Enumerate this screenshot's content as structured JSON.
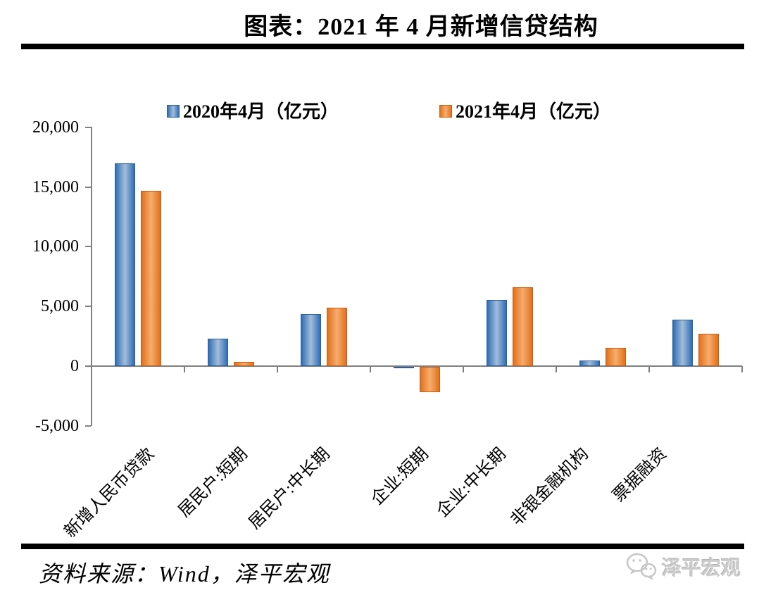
{
  "title": "图表：2021 年 4 月新增信贷结构",
  "legend": [
    {
      "label": "2020年4月（亿元）"
    },
    {
      "label": "2021年4月（亿元）"
    }
  ],
  "chart_data": {
    "type": "bar",
    "title": "图表：2021 年 4 月新增信贷结构",
    "categories": [
      "新增人民币贷款",
      "居民户:短期",
      "居民户:中长期",
      "企业:短期",
      "企业:中长期",
      "非银金融机构",
      "票据融资"
    ],
    "series": [
      {
        "name": "2020年4月（亿元）",
        "values": [
          17000,
          2280,
          4389,
          -62,
          5547,
          459,
          3910
        ],
        "edge_color": "#2e6db6",
        "mid_color": "#a3bdd8",
        "border_color": "#2b5f9c"
      },
      {
        "name": "2021年4月（亿元）",
        "values": [
          14700,
          365,
          4918,
          -2147,
          6605,
          1532,
          2711
        ],
        "edge_color": "#e1701b",
        "mid_color": "#f6ad6e",
        "border_color": "#c95f10"
      }
    ],
    "ylim": [
      -5000,
      20000
    ],
    "ytick_values": [
      20000,
      15000,
      10000,
      5000,
      0,
      -5000
    ],
    "ytick_labels": [
      "20,000",
      "15,000",
      "10,000",
      "5,000",
      "0",
      "-5,000"
    ],
    "axis_color": "#808080",
    "grid": false,
    "legend_position": "top"
  },
  "footer": {
    "source": "资料来源：Wind，泽平宏观",
    "logo_text": "泽平宏观"
  }
}
